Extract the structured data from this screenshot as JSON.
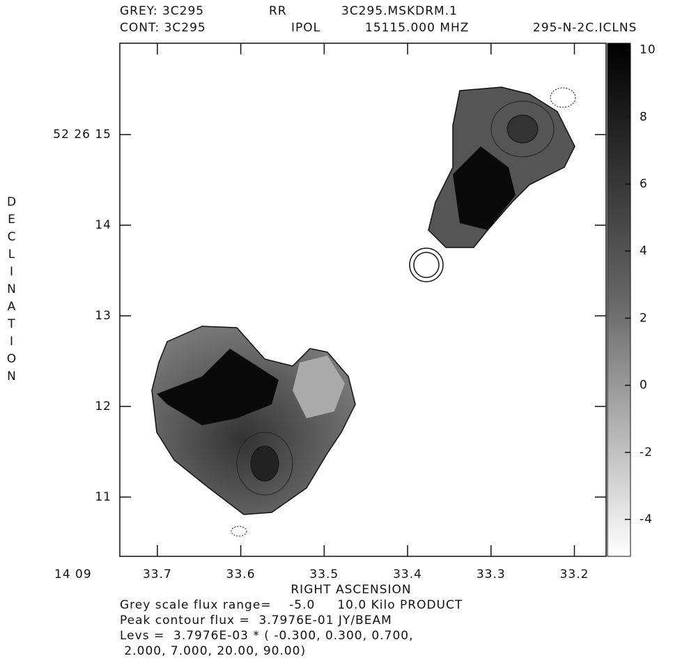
{
  "chart_data": {
    "type": "image",
    "header": [
      [
        "GREY: 3C295",
        "RR",
        "3C295.MSKDRM.1"
      ],
      [
        "CONT: 3C295",
        "IPOL",
        "15115.000 MHZ",
        "295-N-2C.ICLNS"
      ]
    ],
    "xlabel": "RIGHT ASCENSION",
    "ylabel": "DECLINATION",
    "x_prefix": "14 09",
    "xlim": [
      33.745,
      33.162
    ],
    "xticks": [
      33.7,
      33.6,
      33.5,
      33.4,
      33.3,
      33.2
    ],
    "ylim": [
      10.346,
      16.008
    ],
    "yticks": [
      {
        "value": 15,
        "label": "52 26 15"
      },
      14,
      13,
      12,
      11
    ],
    "clim": [
      -5.1,
      10.2
    ],
    "cticks": [
      10,
      8,
      6,
      4,
      2,
      0,
      -2,
      -4
    ],
    "footer": [
      "Grey scale flux range=    -5.0     10.0 Kilo PRODUCT",
      "Peak contour flux =  3.7976E-01 JY/BEAM",
      "Levs =  3.7976E-03 * ( -0.300, 0.300, 0.700,",
      " 2.000, 7.000, 20.00, 90.00)"
    ]
  }
}
